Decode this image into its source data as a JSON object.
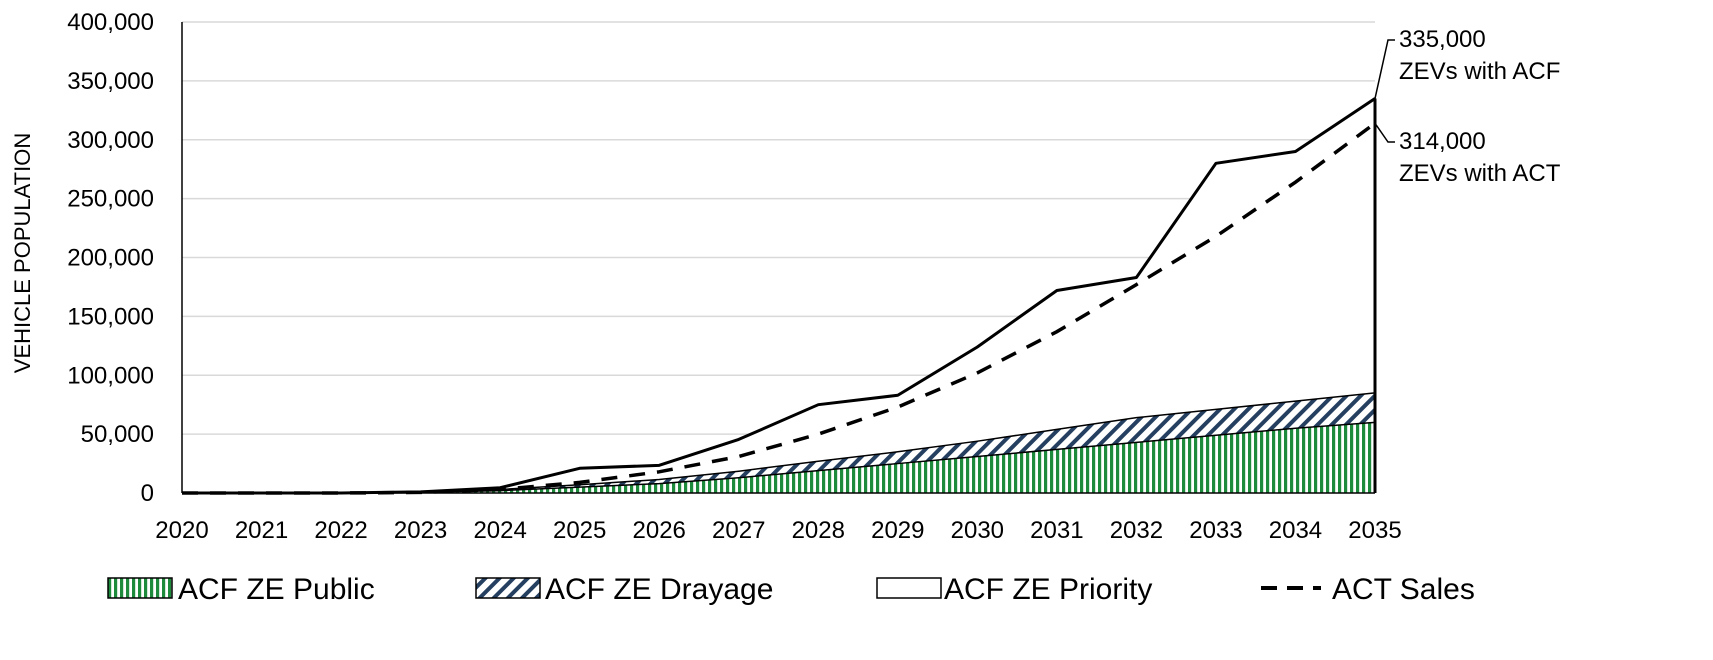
{
  "chart_data": {
    "type": "area",
    "ylabel": "VEHICLE POPULATION",
    "xlabel": "",
    "x": [
      2020,
      2021,
      2022,
      2023,
      2024,
      2025,
      2026,
      2027,
      2028,
      2029,
      2030,
      2031,
      2032,
      2033,
      2034,
      2035
    ],
    "x_tick_labels": [
      "2020",
      "2021",
      "2022",
      "2023",
      "2024",
      "2025",
      "2026",
      "2027",
      "2028",
      "2029",
      "2030",
      "2031",
      "2032",
      "2033",
      "2034",
      "2035"
    ],
    "ylim": [
      0,
      400000
    ],
    "y_ticks": [
      0,
      50000,
      100000,
      150000,
      200000,
      250000,
      300000,
      350000,
      400000
    ],
    "y_tick_labels": [
      "0",
      "50,000",
      "100,000",
      "150,000",
      "200,000",
      "250,000",
      "300,000",
      "350,000",
      "400,000"
    ],
    "grid": true,
    "legend_position": "bottom",
    "series": [
      {
        "name": "ACF ZE Public",
        "kind": "stacked-area",
        "pattern": "vertical-stripes",
        "color": "#1e8a3c",
        "values": [
          0,
          0,
          0,
          500,
          2000,
          5000,
          8000,
          13000,
          19000,
          25000,
          31000,
          37000,
          43000,
          49000,
          55000,
          60000
        ]
      },
      {
        "name": "ACF ZE Drayage",
        "kind": "stacked-area",
        "pattern": "diagonal-hatch",
        "color": "#243f60",
        "values": [
          0,
          0,
          0,
          200,
          1000,
          2000,
          3500,
          5500,
          8000,
          10000,
          13000,
          17000,
          21000,
          22000,
          23000,
          25000
        ]
      },
      {
        "name": "ACF ZE Priority",
        "kind": "stacked-area",
        "pattern": "none",
        "color": "#000000",
        "values": [
          0,
          0,
          0,
          300,
          1500,
          14000,
          12000,
          27000,
          48000,
          48000,
          80000,
          118000,
          119000,
          209000,
          212000,
          250000
        ]
      },
      {
        "name": "ACT Sales",
        "kind": "dashed-line",
        "color": "#000000",
        "values": [
          0,
          0,
          0,
          500,
          3000,
          9000,
          18000,
          31000,
          50000,
          73000,
          102000,
          137000,
          177000,
          218000,
          264000,
          314000
        ]
      }
    ],
    "annotations": [
      {
        "value": 335000,
        "line1": "335,000",
        "line2": "ZEVs with ACF"
      },
      {
        "value": 314000,
        "line1": "314,000",
        "line2": "ZEVs with ACT"
      }
    ]
  }
}
